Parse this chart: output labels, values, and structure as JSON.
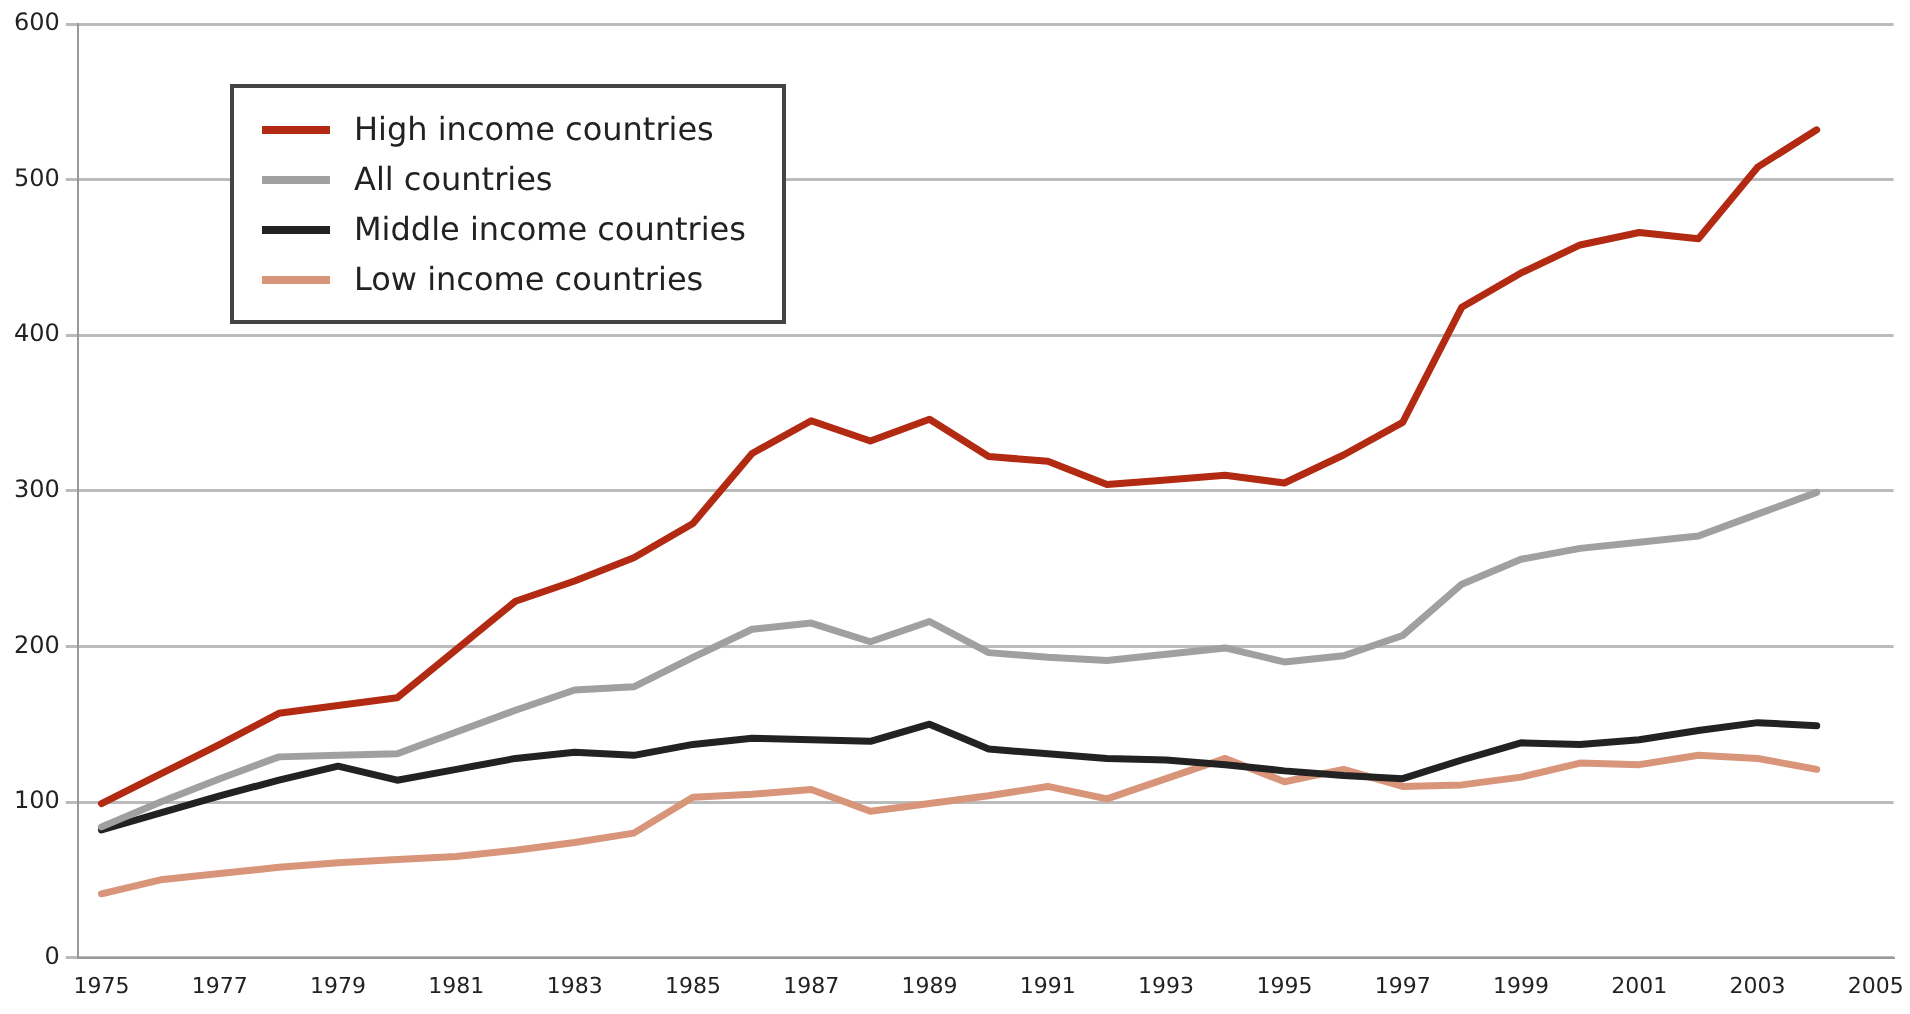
{
  "chart_data": {
    "type": "line",
    "x": [
      1975,
      1976,
      1977,
      1978,
      1979,
      1980,
      1981,
      1982,
      1983,
      1984,
      1985,
      1986,
      1987,
      1988,
      1989,
      1990,
      1991,
      1992,
      1993,
      1994,
      1995,
      1996,
      1997,
      1998,
      1999,
      2000,
      2001,
      2002,
      2003,
      2004
    ],
    "xlim": [
      1974.6,
      2005.3
    ],
    "xticks": [
      1975,
      1977,
      1979,
      1981,
      1983,
      1985,
      1987,
      1989,
      1991,
      1993,
      1995,
      1997,
      1999,
      2001,
      2003,
      2005
    ],
    "ylim": [
      0,
      600
    ],
    "yticks": [
      0,
      100,
      200,
      300,
      400,
      500,
      600
    ],
    "grid": "y",
    "legend": "top left",
    "marker": "none",
    "line_style": "solid",
    "series": [
      {
        "name": "High income countries",
        "color": "#b22a12",
        "values": [
          99,
          118,
          137,
          157,
          162,
          167,
          198,
          229,
          242,
          257,
          279,
          324,
          345,
          332,
          346,
          322,
          319,
          304,
          307,
          310,
          305,
          323,
          344,
          418,
          440,
          458,
          466,
          462,
          508,
          532
        ]
      },
      {
        "name": "All countries",
        "color": "#a0a0a0",
        "values": [
          84,
          100,
          115,
          129,
          130,
          131,
          145,
          159,
          172,
          174,
          193,
          211,
          215,
          203,
          216,
          196,
          193,
          191,
          195,
          199,
          190,
          194,
          207,
          240,
          256,
          263,
          267,
          271,
          285,
          299
        ]
      },
      {
        "name": "Middle income countries",
        "color": "#222222",
        "values": [
          82,
          93,
          104,
          114,
          123,
          114,
          121,
          128,
          132,
          130,
          137,
          141,
          140,
          139,
          150,
          134,
          131,
          128,
          127,
          124,
          120,
          117,
          115,
          127,
          138,
          137,
          140,
          146,
          151,
          149
        ]
      },
      {
        "name": "Low income countries",
        "color": "#d9957a",
        "values": [
          41,
          50,
          54,
          58,
          61,
          63,
          65,
          69,
          74,
          80,
          103,
          105,
          108,
          94,
          99,
          104,
          110,
          102,
          115,
          128,
          113,
          121,
          110,
          111,
          116,
          125,
          124,
          130,
          128,
          121
        ]
      }
    ]
  }
}
